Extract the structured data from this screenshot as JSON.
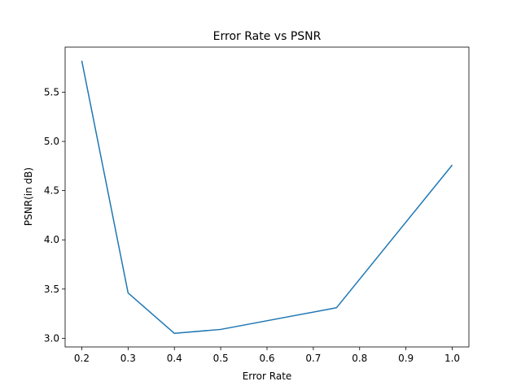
{
  "chart_data": {
    "type": "line",
    "title": "Error Rate vs PSNR",
    "xlabel": "Error Rate",
    "ylabel": "PSNR(in dB)",
    "x": [
      0.2,
      0.3,
      0.4,
      0.5,
      0.75,
      1.0
    ],
    "series": [
      {
        "values": [
          5.82,
          3.46,
          3.05,
          3.09,
          3.31,
          4.76
        ],
        "color": "#1f77b4"
      }
    ],
    "xlim": [
      0.164,
      1.036
    ],
    "ylim": [
      2.912,
      5.958
    ],
    "xticks": [
      0.2,
      0.3,
      0.4,
      0.5,
      0.6,
      0.7,
      0.8,
      0.9,
      1.0
    ],
    "xtick_labels": [
      "0.2",
      "0.3",
      "0.4",
      "0.5",
      "0.6",
      "0.7",
      "0.8",
      "0.9",
      "1.0"
    ],
    "yticks": [
      3.0,
      3.5,
      4.0,
      4.5,
      5.0,
      5.5
    ],
    "ytick_labels": [
      "3.0",
      "3.5",
      "4.0",
      "4.5",
      "5.0",
      "5.5"
    ],
    "grid": false,
    "legend": false
  }
}
